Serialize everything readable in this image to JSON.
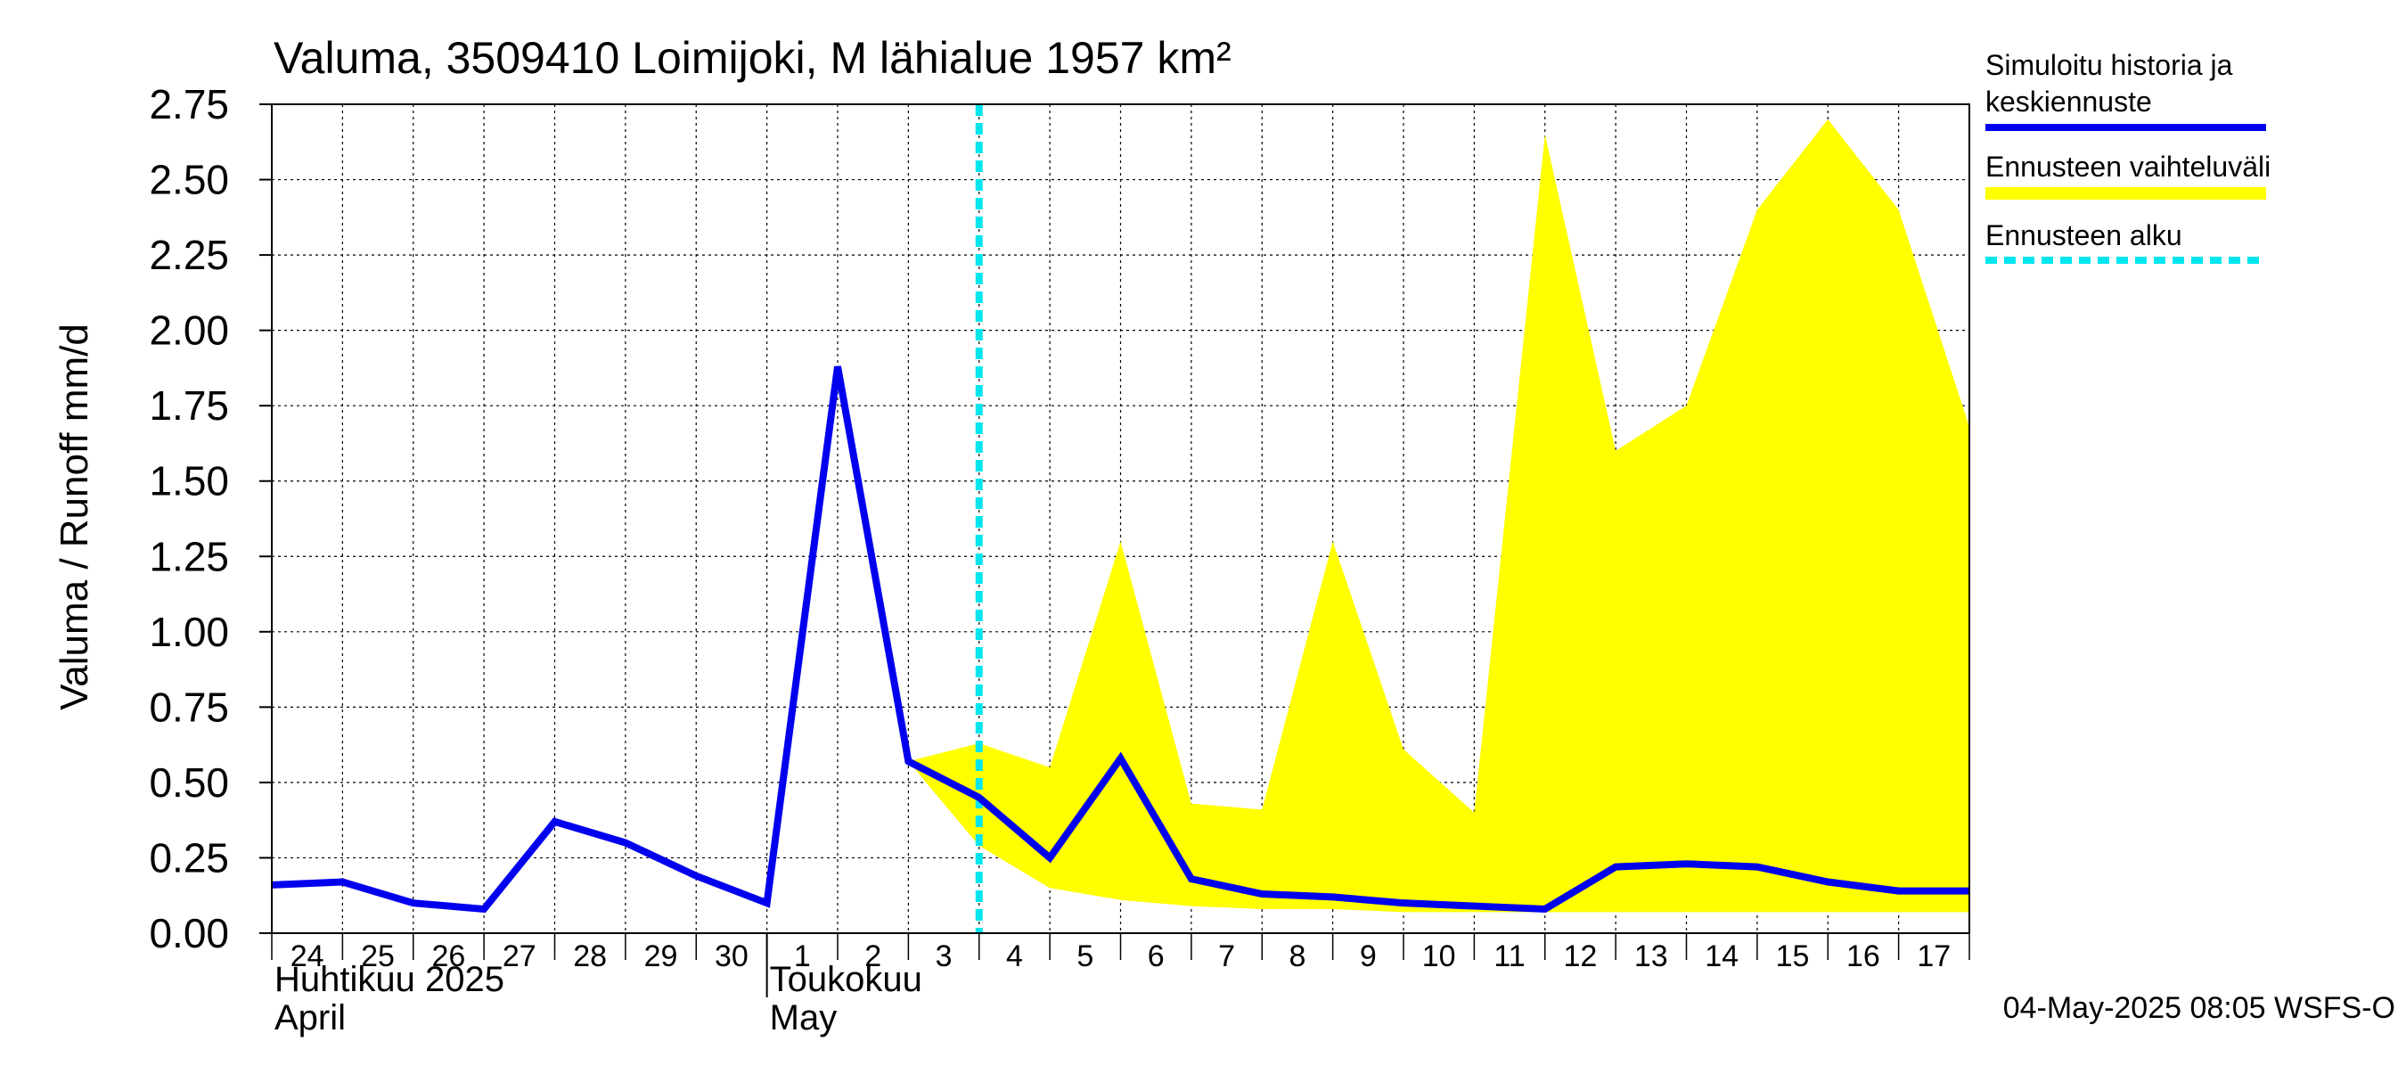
{
  "chart_data": {
    "type": "line",
    "title": "Valuma, 3509410 Loimijoki, M lähialue 1957 km²",
    "ylabel": "Valuma / Runoff     mm/d",
    "ylim": [
      0,
      2.75
    ],
    "yticks": [
      0,
      0.25,
      0.5,
      0.75,
      1.0,
      1.25,
      1.5,
      1.75,
      2.0,
      2.25,
      2.5,
      2.75
    ],
    "ytick_labels": [
      "0.00",
      "0.25",
      "0.50",
      "0.75",
      "1.00",
      "1.25",
      "1.50",
      "1.75",
      "2.00",
      "2.25",
      "2.50",
      "2.75"
    ],
    "xlim": [
      "2025-04-24",
      "2025-05-18"
    ],
    "xtick_labels": [
      "24",
      "25",
      "26",
      "27",
      "28",
      "29",
      "30",
      "1",
      "2",
      "3",
      "4",
      "5",
      "6",
      "7",
      "8",
      "9",
      "10",
      "11",
      "12",
      "13",
      "14",
      "15",
      "16",
      "17"
    ],
    "month_labels": [
      {
        "fi": "Huhtikuu  2025",
        "en": "April",
        "start": "2025-04-24"
      },
      {
        "fi": "Toukokuu",
        "en": "May",
        "start": "2025-05-01"
      }
    ],
    "grid": true,
    "legend_position": "right",
    "forecast_start": "2025-05-04",
    "series": [
      {
        "name": "Simuloitu historia ja keskiennuste",
        "color": "#0000ee",
        "x": [
          "2025-04-24",
          "2025-04-25",
          "2025-04-26",
          "2025-04-27",
          "2025-04-28",
          "2025-04-29",
          "2025-04-30",
          "2025-05-01",
          "2025-05-02",
          "2025-05-03",
          "2025-05-04",
          "2025-05-05",
          "2025-05-06",
          "2025-05-07",
          "2025-05-08",
          "2025-05-09",
          "2025-05-10",
          "2025-05-11",
          "2025-05-12",
          "2025-05-13",
          "2025-05-14",
          "2025-05-15",
          "2025-05-16",
          "2025-05-17",
          "2025-05-18"
        ],
        "y": [
          0.16,
          0.17,
          0.1,
          0.08,
          0.37,
          0.3,
          0.19,
          0.1,
          1.88,
          0.57,
          0.45,
          0.25,
          0.58,
          0.18,
          0.13,
          0.12,
          0.1,
          0.09,
          0.08,
          0.22,
          0.23,
          0.22,
          0.17,
          0.14,
          0.14
        ]
      },
      {
        "name": "Ennusteen vaihteluväli",
        "color": "#ffff00",
        "x": [
          "2025-05-03",
          "2025-05-04",
          "2025-05-05",
          "2025-05-06",
          "2025-05-07",
          "2025-05-08",
          "2025-05-09",
          "2025-05-10",
          "2025-05-11",
          "2025-05-12",
          "2025-05-13",
          "2025-05-14",
          "2025-05-15",
          "2025-05-16",
          "2025-05-17",
          "2025-05-18"
        ],
        "upper": [
          0.57,
          0.63,
          0.55,
          1.3,
          0.43,
          0.41,
          1.3,
          0.61,
          0.4,
          2.65,
          1.6,
          1.75,
          2.4,
          2.7,
          2.4,
          1.68
        ],
        "lower": [
          0.57,
          0.29,
          0.15,
          0.11,
          0.09,
          0.08,
          0.08,
          0.07,
          0.07,
          0.07,
          0.07,
          0.07,
          0.07,
          0.07,
          0.07,
          0.07
        ]
      },
      {
        "name": "Ennusteen alku",
        "color": "#00e5ee"
      }
    ],
    "footer": "04-May-2025 08:05 WSFS-O"
  }
}
